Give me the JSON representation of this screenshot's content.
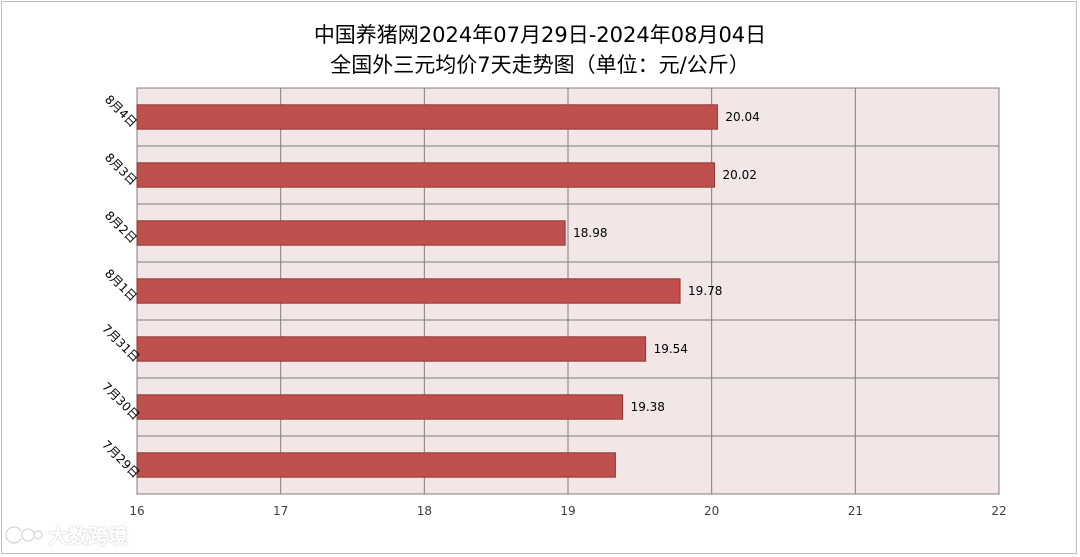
{
  "title": {
    "line1": "中国养猪网2024年07月29日-2024年08月04日",
    "line2": "全国外三元均价7天走势图（单位：元/公斤）"
  },
  "watermark": {
    "text": "大数跨境"
  },
  "colors": {
    "bar_fill": "#c0504d",
    "bar_stroke": "#8c3836",
    "plot_bg": "#f2e6e6",
    "grid": "#7f7f7f"
  },
  "chart_data": {
    "type": "bar",
    "orientation": "horizontal",
    "categories": [
      "7月29日",
      "7月30日",
      "7月31日",
      "8月1日",
      "8月2日",
      "8月3日",
      "8月4日"
    ],
    "values": [
      19.33,
      19.38,
      19.54,
      19.78,
      18.98,
      20.02,
      20.04
    ],
    "data_labels": [
      "",
      "19.38",
      "19.54",
      "19.78",
      "18.98",
      "20.02",
      "20.04"
    ],
    "x_ticks": [
      "16",
      "17",
      "18",
      "19",
      "20",
      "21",
      "22"
    ],
    "xlim": [
      16,
      22
    ],
    "grid": true,
    "legend": "none"
  }
}
